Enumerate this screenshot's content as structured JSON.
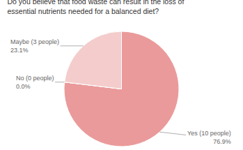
{
  "chart_data": {
    "type": "pie",
    "title": "Do you believe that food waste can result in the loss of essential nutrients needed for a balanced diet?",
    "categories": [
      "Yes (10 people)",
      "No (0 people)",
      "Maybe (3 people)"
    ],
    "values": [
      76.9,
      0.0,
      23.1
    ],
    "value_labels": [
      "76.9%",
      "0.0%",
      "23.1%"
    ],
    "data_labels": true,
    "colors": [
      "#ea9a9a",
      "#f6dede",
      "#f4cccc"
    ]
  }
}
